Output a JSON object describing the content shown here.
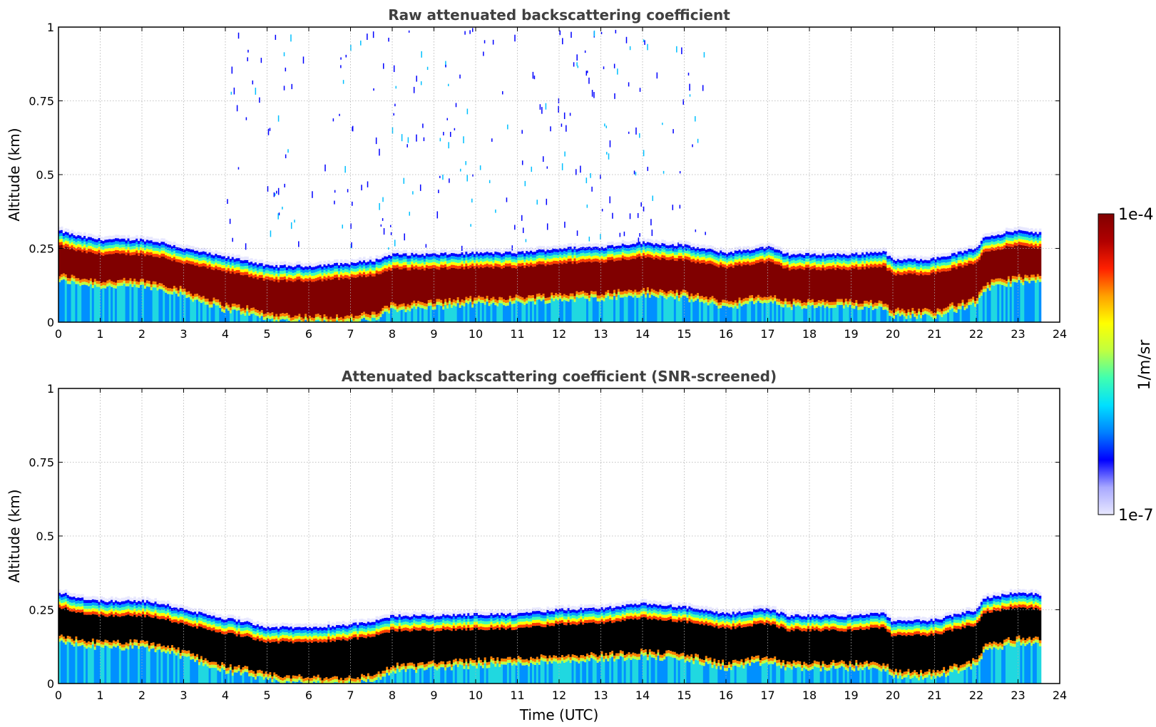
{
  "chart_data": [
    {
      "type": "heatmap",
      "title": "Raw attenuated backscattering coefficient",
      "xlabel": "",
      "ylabel": "Altitude (km)",
      "xlim": [
        0,
        24
      ],
      "ylim": [
        0,
        1
      ],
      "xticks": [
        "0",
        "1",
        "2",
        "3",
        "4",
        "5",
        "6",
        "7",
        "8",
        "9",
        "10",
        "11",
        "12",
        "13",
        "14",
        "15",
        "16",
        "17",
        "18",
        "19",
        "20",
        "21",
        "22",
        "23",
        "24"
      ],
      "yticks": [
        "0",
        "0.25",
        "0.5",
        "0.75",
        "1"
      ],
      "grid": true,
      "data_end_hour": 23.55,
      "layer_top_km": {
        "hours": [
          0,
          0.5,
          1,
          2,
          2.5,
          3,
          4,
          4.5,
          5,
          6,
          7,
          7.6,
          8,
          9,
          10,
          11,
          12,
          13,
          14,
          15,
          16,
          17,
          17.5,
          18,
          19,
          19.8,
          20,
          21,
          22,
          22.2,
          23,
          23.55
        ],
        "values": [
          0.31,
          0.29,
          0.28,
          0.28,
          0.27,
          0.25,
          0.22,
          0.21,
          0.19,
          0.19,
          0.2,
          0.21,
          0.23,
          0.23,
          0.235,
          0.235,
          0.25,
          0.255,
          0.27,
          0.26,
          0.235,
          0.255,
          0.23,
          0.23,
          0.23,
          0.24,
          0.21,
          0.215,
          0.25,
          0.29,
          0.31,
          0.3
        ]
      },
      "layer_bottom_km": {
        "hours": [
          0,
          0.5,
          1,
          2,
          2.5,
          3,
          4,
          4.5,
          5,
          6,
          7,
          7.6,
          8,
          9,
          10,
          11,
          12,
          13,
          14,
          15,
          16,
          17,
          17.5,
          18,
          19,
          19.8,
          20,
          21,
          22,
          22.2,
          23,
          23.55
        ],
        "values": [
          0.15,
          0.14,
          0.13,
          0.13,
          0.12,
          0.1,
          0.05,
          0.04,
          0.02,
          0.01,
          0.01,
          0.02,
          0.05,
          0.06,
          0.07,
          0.075,
          0.085,
          0.09,
          0.1,
          0.09,
          0.06,
          0.08,
          0.06,
          0.06,
          0.06,
          0.06,
          0.03,
          0.03,
          0.07,
          0.12,
          0.145,
          0.145
        ]
      }
    },
    {
      "type": "heatmap",
      "title": "Attenuated backscattering coefficient (SNR-screened)",
      "xlabel": "Time (UTC)",
      "ylabel": "Altitude (km)",
      "xlim": [
        0,
        24
      ],
      "ylim": [
        0,
        1
      ],
      "xticks": [
        "0",
        "1",
        "2",
        "3",
        "4",
        "5",
        "6",
        "7",
        "8",
        "9",
        "10",
        "11",
        "12",
        "13",
        "14",
        "15",
        "16",
        "17",
        "18",
        "19",
        "20",
        "21",
        "22",
        "23",
        "24"
      ],
      "yticks": [
        "0",
        "0.25",
        "0.5",
        "0.75",
        "1"
      ],
      "grid": true,
      "data_end_hour": 23.55,
      "saturated_color": "#000000"
    }
  ],
  "colorbar": {
    "label": "1/m/sr",
    "max_label": "1e-4",
    "min_label": "1e-7",
    "colors": [
      "#e8e8ff",
      "#a8a8ff",
      "#0000ff",
      "#0080ff",
      "#00e0ff",
      "#40ffb0",
      "#c0ff40",
      "#ffff00",
      "#ffa000",
      "#ff2000",
      "#b00000",
      "#800000"
    ]
  }
}
